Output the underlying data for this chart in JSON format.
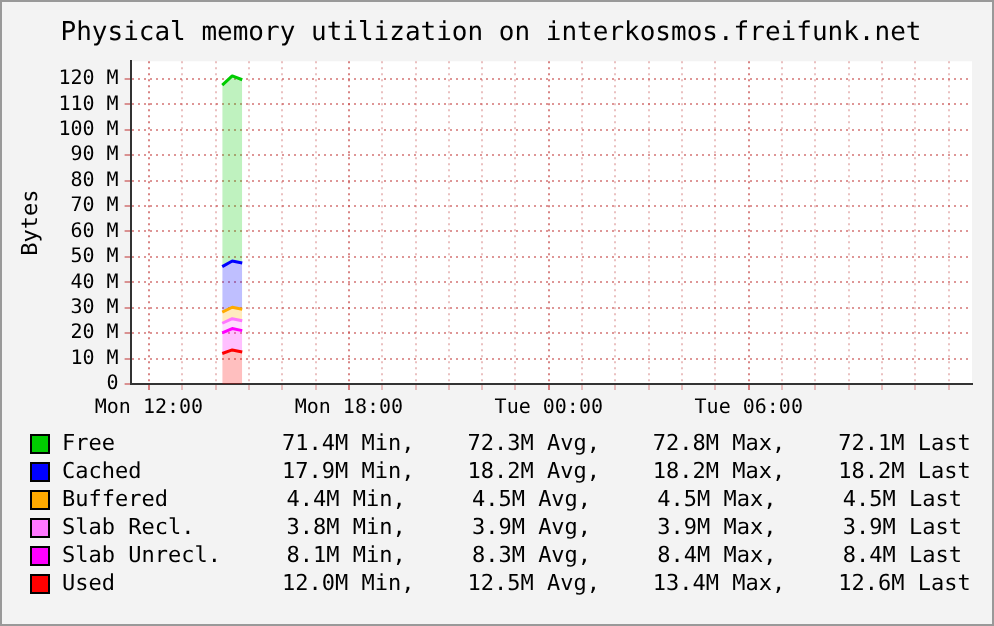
{
  "chart_data": {
    "type": "area",
    "stacked": true,
    "title": "Physical memory utilization on interkosmos.freifunk.net",
    "ylabel": "Bytes",
    "x": [
      "--01-01T14:12",
      "--01-01T14:30",
      "--01-01T14:48"
    ],
    "xlim": [
      "--01-01T11:27",
      "--01-02T12:42"
    ],
    "xticks": [
      {
        "value": "--01-01T12:00",
        "label": "Mon 12:00"
      },
      {
        "value": "--01-01T13:00",
        "label": null
      },
      {
        "value": "--01-01T14:00",
        "label": null
      },
      {
        "value": "--01-01T15:00",
        "label": null
      },
      {
        "value": "--01-01T16:00",
        "label": null
      },
      {
        "value": "--01-01T17:00",
        "label": null
      },
      {
        "value": "--01-01T18:00",
        "label": "Mon 18:00"
      },
      {
        "value": "--01-01T19:00",
        "label": null
      },
      {
        "value": "--01-01T20:00",
        "label": null
      },
      {
        "value": "--01-01T21:00",
        "label": null
      },
      {
        "value": "--01-01T22:00",
        "label": null
      },
      {
        "value": "--01-01T23:00",
        "label": null
      },
      {
        "value": "--01-02T00:00",
        "label": "Tue 00:00"
      },
      {
        "value": "--01-02T01:00",
        "label": null
      },
      {
        "value": "--01-02T02:00",
        "label": null
      },
      {
        "value": "--01-02T03:00",
        "label": null
      },
      {
        "value": "--01-02T04:00",
        "label": null
      },
      {
        "value": "--01-02T05:00",
        "label": null
      },
      {
        "value": "--01-02T06:00",
        "label": "Tue 06:00"
      },
      {
        "value": "--01-02T07:00",
        "label": null
      },
      {
        "value": "--01-02T08:00",
        "label": null
      },
      {
        "value": "--01-02T09:00",
        "label": null
      },
      {
        "value": "--01-02T10:00",
        "label": null
      },
      {
        "value": "--01-02T11:00",
        "label": null
      },
      {
        "value": "--01-02T12:00",
        "label": null
      }
    ],
    "ylim": [
      0,
      127
    ],
    "yticks": [
      {
        "value": 0,
        "label": "0"
      },
      {
        "value": 10,
        "label": "10 M"
      },
      {
        "value": 20,
        "label": "20 M"
      },
      {
        "value": 30,
        "label": "30 M"
      },
      {
        "value": 40,
        "label": "40 M"
      },
      {
        "value": 50,
        "label": "50 M"
      },
      {
        "value": 60,
        "label": "60 M"
      },
      {
        "value": 70,
        "label": "70 M"
      },
      {
        "value": 80,
        "label": "80 M"
      },
      {
        "value": 90,
        "label": "90 M"
      },
      {
        "value": 100,
        "label": "100 M"
      },
      {
        "value": 110,
        "label": "110 M"
      },
      {
        "value": 120,
        "label": "120 M"
      }
    ],
    "grid": true,
    "legend": "bottom",
    "series": [
      {
        "name": "Used",
        "color": "#ff0000",
        "values": [
          12.0,
          13.4,
          12.6
        ]
      },
      {
        "name": "Slab Unrecl.",
        "color": "#ff00ff",
        "values": [
          8.1,
          8.4,
          8.4
        ]
      },
      {
        "name": "Slab Recl.",
        "color": "#ff77ff",
        "values": [
          3.8,
          3.9,
          3.9
        ]
      },
      {
        "name": "Buffered",
        "color": "#ffaa00",
        "values": [
          4.4,
          4.5,
          4.5
        ]
      },
      {
        "name": "Cached",
        "color": "#0000ff",
        "values": [
          17.9,
          18.2,
          18.2
        ]
      },
      {
        "name": "Free",
        "color": "#00cc00",
        "values": [
          71.4,
          72.8,
          72.1
        ]
      }
    ],
    "annotations": [
      "12.0M Min,    12.5M Avg,    13.4M Max,    12.6M Last",
      "8.1M Min,     8.3M Avg,     8.4M Max,     8.4M Last",
      "3.8M Min,     3.9M Avg,     3.9M Max,     3.9M Last",
      "4.4M Min,     4.5M Avg,     4.5M Max,     4.5M Last",
      "17.9M Min,    18.2M Avg,    18.2M Max,    18.2M Last",
      "71.4M Min,    72.3M Avg,    72.8M Max,    72.1M Last"
    ]
  }
}
